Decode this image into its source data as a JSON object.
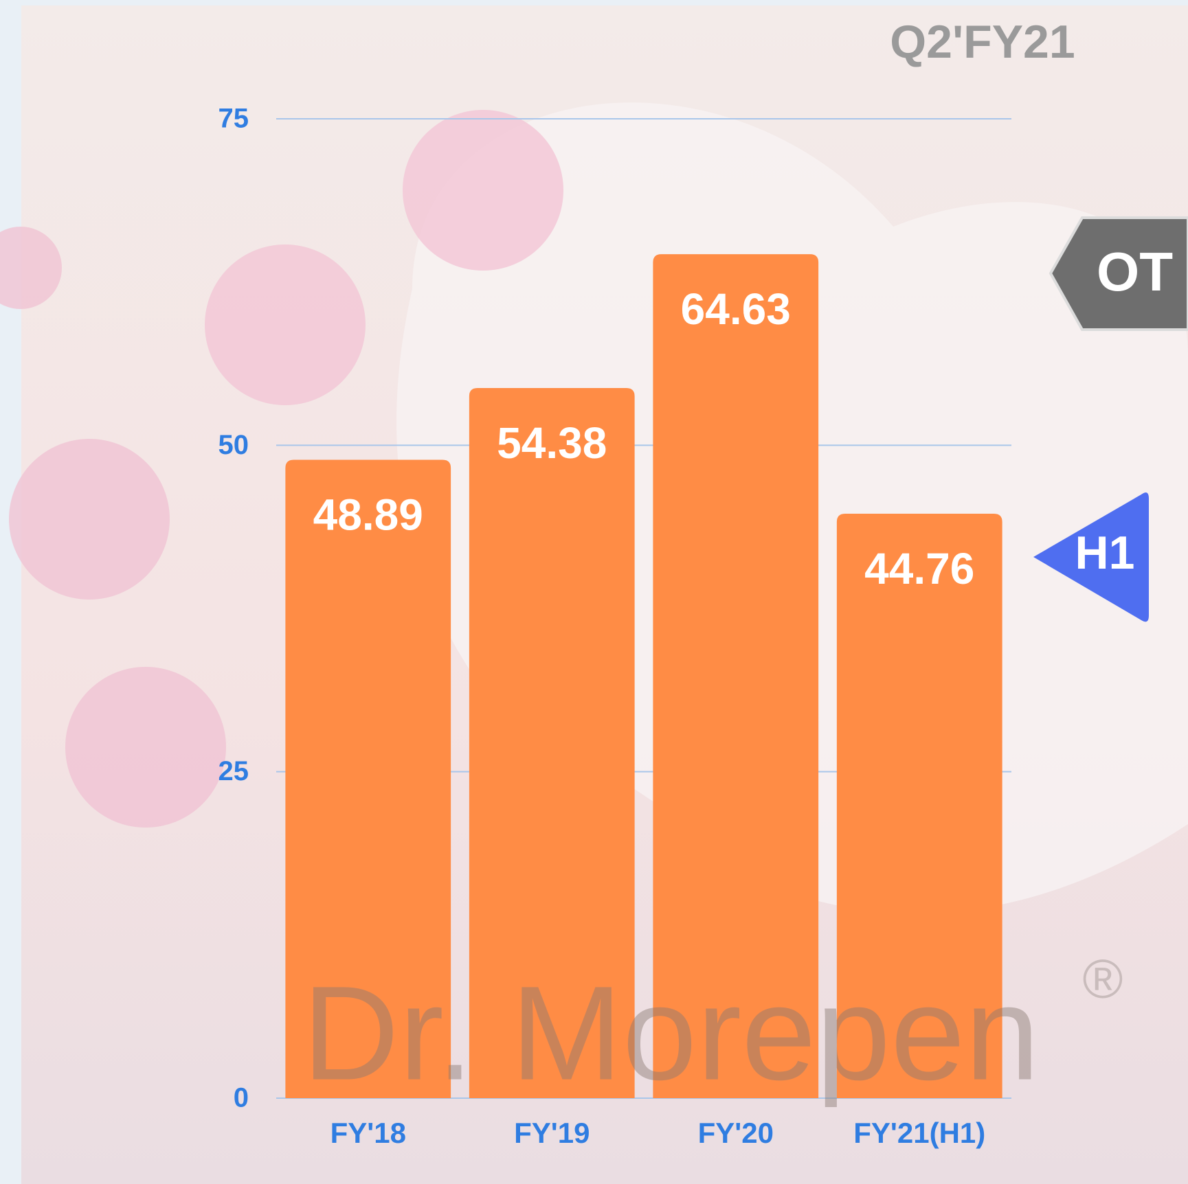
{
  "chart_data": {
    "type": "bar",
    "title": "Q2'FY21",
    "categories": [
      "FY'18",
      "FY'19",
      "FY'20",
      "FY'21(H1)"
    ],
    "values": [
      48.89,
      54.38,
      64.63,
      44.76
    ],
    "color": "#ff8c45",
    "ylim": [
      0,
      75
    ],
    "yticks": [
      0,
      25,
      50,
      75
    ],
    "grid": true,
    "annotations": [
      "OT",
      "H1"
    ],
    "watermark": "Dr. Morepen",
    "watermark_mark": "®"
  }
}
